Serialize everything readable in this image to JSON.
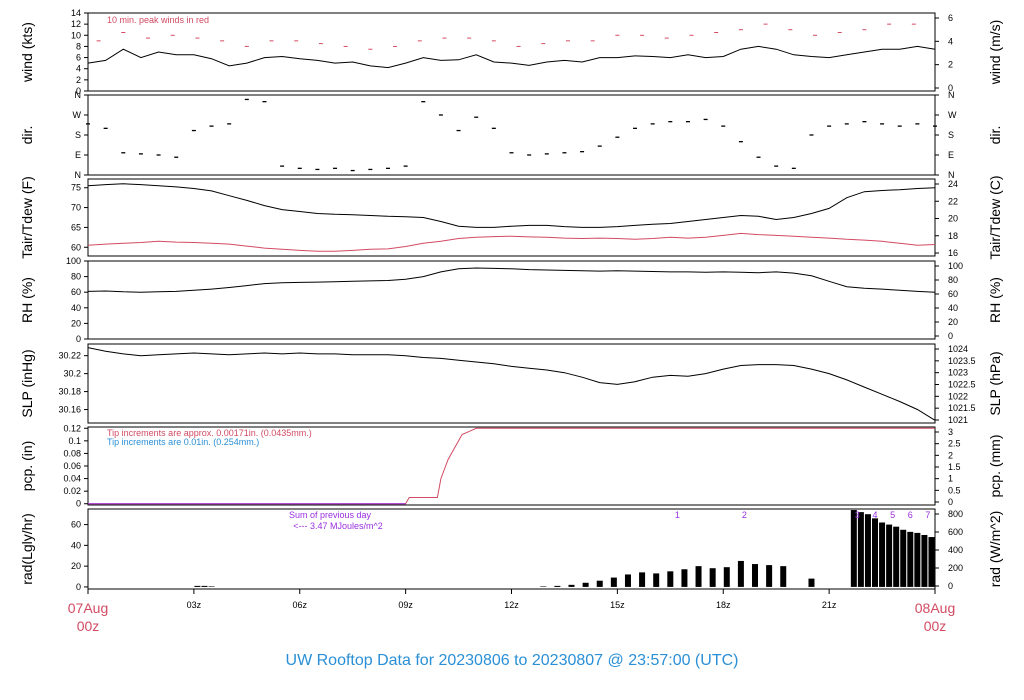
{
  "title": "UW Rooftop Data for 20230806  to  20230807 @ 23:57:00  (UTC)",
  "colors": {
    "title": "#2a8fd6",
    "date": "#d24b63",
    "red": "#d24b63",
    "blue": "#2a8fd6",
    "purple": "#9a2fe0",
    "line": "#000000"
  },
  "x_ticks": {
    "hours": [
      0,
      3,
      6,
      9,
      12,
      15,
      18,
      21,
      24
    ],
    "labels": [
      "07Aug",
      "03z",
      "06z",
      "09z",
      "12z",
      "15z",
      "18z",
      "21z",
      "08Aug"
    ],
    "start_sub": "00z",
    "end_sub": "00z"
  },
  "chart_data": [
    {
      "id": "wind",
      "type": "line",
      "ylabel": "wind (kts)",
      "ylabel_right": "wind (m/s)",
      "ylim": [
        0,
        14
      ],
      "yticks": [
        0,
        2,
        4,
        6,
        8,
        10,
        12,
        14
      ],
      "right_ylim_units": [
        0,
        7.2
      ],
      "right_ticks": [
        0,
        2,
        4,
        6
      ],
      "note": "10 min. peak winds in red",
      "series": [
        {
          "role": "speed",
          "x": [
            0,
            0.5,
            1,
            1.5,
            2,
            2.5,
            3,
            3.5,
            4,
            4.5,
            5,
            5.5,
            6,
            6.5,
            7,
            7.5,
            8,
            8.5,
            9,
            9.5,
            10,
            10.5,
            11,
            11.5,
            12,
            12.5,
            13,
            13.5,
            14,
            14.5,
            15,
            15.5,
            16,
            16.5,
            17,
            17.5,
            18,
            18.5,
            19,
            19.5,
            20,
            20.5,
            21,
            21.5,
            22,
            22.5,
            23,
            23.5,
            24
          ],
          "y": [
            5,
            5.5,
            7.5,
            6,
            7,
            6.5,
            6.5,
            5.8,
            4.5,
            5,
            6,
            6.2,
            5.8,
            5.5,
            5,
            5.2,
            4.5,
            4.2,
            5,
            6,
            5.5,
            5.6,
            6.5,
            5.2,
            5,
            4.6,
            5.2,
            5.5,
            5.2,
            6,
            6,
            6.3,
            6.2,
            6,
            6.5,
            6,
            6.2,
            7.5,
            8,
            7.5,
            6.5,
            6.2,
            6,
            6.5,
            7,
            7.5,
            7.5,
            8,
            7.5
          ]
        },
        {
          "role": "peak",
          "x": [
            0.3,
            1,
            1.7,
            2.4,
            3.1,
            3.8,
            4.5,
            5.2,
            5.9,
            6.6,
            7.3,
            8,
            8.7,
            9.4,
            10.1,
            10.8,
            11.5,
            12.2,
            12.9,
            13.6,
            14.3,
            15,
            15.7,
            16.4,
            17.1,
            17.8,
            18.5,
            19.2,
            19.9,
            20.6,
            21.3,
            22,
            22.7,
            23.4
          ],
          "y": [
            9,
            10.5,
            9.5,
            10,
            9.5,
            9,
            8,
            9,
            9,
            8.5,
            8,
            7.5,
            8,
            9,
            9.5,
            9.5,
            9,
            8,
            8.5,
            9,
            9,
            10,
            10,
            9.5,
            10,
            10.5,
            11,
            12,
            11,
            10,
            10.5,
            11,
            12,
            12
          ]
        }
      ]
    },
    {
      "id": "dir",
      "type": "scatter",
      "ylabel": "dir.",
      "ylabel_right": "dir.",
      "ylim": [
        0,
        360
      ],
      "yticks": [
        0,
        90,
        180,
        270,
        360
      ],
      "ytick_labels": [
        "N",
        "E",
        "S",
        "W",
        "N"
      ],
      "series": [
        {
          "role": "direction",
          "x": [
            0,
            0.5,
            1,
            1.5,
            2,
            2.5,
            3,
            3.5,
            4,
            4.5,
            5,
            5.5,
            6,
            6.5,
            7,
            7.5,
            8,
            8.5,
            9,
            9.5,
            10,
            10.5,
            11,
            11.5,
            12,
            12.5,
            13,
            13.5,
            14,
            14.5,
            15,
            15.5,
            16,
            16.5,
            17,
            17.5,
            18,
            18.5,
            19,
            19.5,
            20,
            20.5,
            21,
            21.5,
            22,
            22.5,
            23,
            23.5,
            24
          ],
          "y": [
            230,
            210,
            100,
            95,
            90,
            80,
            200,
            220,
            230,
            340,
            330,
            40,
            30,
            25,
            30,
            20,
            25,
            30,
            40,
            330,
            270,
            200,
            260,
            210,
            100,
            90,
            95,
            100,
            105,
            130,
            170,
            210,
            230,
            240,
            240,
            250,
            220,
            150,
            80,
            40,
            30,
            180,
            220,
            230,
            240,
            230,
            220,
            230,
            220
          ]
        }
      ]
    },
    {
      "id": "temp",
      "type": "line",
      "ylabel": "Tair/Tdew (F)",
      "ylabel_right": "Tair/Tdew (C)",
      "ylim": [
        57.8,
        77.2
      ],
      "yticks": [
        60,
        65,
        70,
        75
      ],
      "right_ticks": [
        16,
        18,
        20,
        22,
        24
      ],
      "series": [
        {
          "role": "air",
          "x": [
            0,
            0.5,
            1,
            1.5,
            2,
            2.5,
            3,
            3.5,
            4,
            4.5,
            5,
            5.5,
            6,
            6.5,
            7,
            7.5,
            8,
            8.5,
            9,
            9.5,
            10,
            10.5,
            11,
            11.5,
            12,
            12.5,
            13,
            13.5,
            14,
            14.5,
            15,
            15.5,
            16,
            16.5,
            17,
            17.5,
            18,
            18.5,
            19,
            19.5,
            20,
            20.5,
            21,
            21.5,
            22,
            22.5,
            23,
            23.5,
            24
          ],
          "y": [
            75.5,
            75.8,
            76,
            75.8,
            75.5,
            75.2,
            74.8,
            74.2,
            73,
            71.8,
            70.5,
            69.5,
            69,
            68.5,
            68.3,
            68.2,
            68,
            67.8,
            67.7,
            67.5,
            66.5,
            65.3,
            65,
            65,
            65.3,
            65.5,
            65.5,
            65.2,
            65,
            65,
            65.2,
            65.5,
            65.8,
            66,
            66.5,
            67,
            67.5,
            68,
            67.8,
            67,
            67.5,
            68.5,
            69.8,
            72.5,
            74,
            74.3,
            74.5,
            74.8,
            75
          ]
        },
        {
          "role": "dew",
          "x": [
            0,
            0.5,
            1,
            1.5,
            2,
            2.5,
            3,
            3.5,
            4,
            4.5,
            5,
            5.5,
            6,
            6.5,
            7,
            7.5,
            8,
            8.5,
            9,
            9.5,
            10,
            10.5,
            11,
            11.5,
            12,
            12.5,
            13,
            13.5,
            14,
            14.5,
            15,
            15.5,
            16,
            16.5,
            17,
            17.5,
            18,
            18.5,
            19,
            19.5,
            20,
            20.5,
            21,
            21.5,
            22,
            22.5,
            23,
            23.5,
            24
          ],
          "y": [
            60.5,
            60.8,
            61,
            61.2,
            61.5,
            61.3,
            61.2,
            61,
            60.8,
            60.3,
            59.8,
            59.5,
            59.2,
            59,
            59,
            59.2,
            59.5,
            59.6,
            60.2,
            61,
            61.5,
            62.2,
            62.5,
            62.7,
            62.8,
            62.6,
            62.5,
            62.3,
            62.2,
            62.3,
            62.2,
            62,
            62.2,
            62.5,
            62.3,
            62.5,
            63,
            63.5,
            63.2,
            63,
            62.8,
            62.5,
            62.3,
            62,
            61.8,
            61.5,
            61,
            60.5,
            60.7
          ]
        }
      ]
    },
    {
      "id": "rh",
      "type": "line",
      "ylabel": "RH (%)",
      "ylabel_right": "RH (%)",
      "ylim": [
        0,
        100
      ],
      "yticks": [
        0,
        20,
        40,
        60,
        80,
        100
      ],
      "right_ticks": [
        0,
        20,
        40,
        60,
        80,
        100
      ],
      "series": [
        {
          "role": "rh",
          "x": [
            0,
            0.5,
            1,
            1.5,
            2,
            2.5,
            3,
            3.5,
            4,
            4.5,
            5,
            5.5,
            6,
            6.5,
            7,
            7.5,
            8,
            8.5,
            9,
            9.5,
            10,
            10.5,
            11,
            11.5,
            12,
            12.5,
            13,
            13.5,
            14,
            14.5,
            15,
            15.5,
            16,
            16.5,
            17,
            17.5,
            18,
            18.5,
            19,
            19.5,
            20,
            20.5,
            21,
            21.5,
            22,
            22.5,
            23,
            23.5,
            24
          ],
          "y": [
            61,
            61.5,
            60.5,
            60,
            60.5,
            61,
            62.5,
            64,
            66,
            68.5,
            71,
            72,
            72.5,
            73,
            73.5,
            74,
            74.5,
            75,
            76.5,
            80,
            86,
            90,
            91,
            90.5,
            90,
            89,
            88.5,
            88,
            87.5,
            87,
            87.5,
            87,
            86.5,
            86,
            86,
            85.5,
            86,
            85.5,
            85,
            86,
            84.5,
            81,
            74,
            67,
            65,
            64,
            62.5,
            61,
            60
          ]
        }
      ]
    },
    {
      "id": "slp",
      "type": "line",
      "ylabel": "SLP (inHg)",
      "ylabel_right": "SLP (hPa)",
      "ylim": [
        30.145,
        30.233
      ],
      "yticks": [
        30.16,
        30.18,
        30.2,
        30.22
      ],
      "right_ticks": [
        1021,
        1021.5,
        1022,
        1022.5,
        1023,
        1023.5,
        1024
      ],
      "series": [
        {
          "role": "slp",
          "x": [
            0,
            0.5,
            1,
            1.5,
            2,
            2.5,
            3,
            3.5,
            4,
            4.5,
            5,
            5.5,
            6,
            6.5,
            7,
            7.5,
            8,
            8.5,
            9,
            9.5,
            10,
            10.5,
            11,
            11.5,
            12,
            12.5,
            13,
            13.5,
            14,
            14.5,
            15,
            15.5,
            16,
            16.5,
            17,
            17.5,
            18,
            18.5,
            19,
            19.5,
            20,
            20.5,
            21,
            21.5,
            22,
            22.5,
            23,
            23.5,
            24
          ],
          "y": [
            30.229,
            30.225,
            30.222,
            30.22,
            30.221,
            30.222,
            30.223,
            30.222,
            30.221,
            30.222,
            30.223,
            30.222,
            30.223,
            30.222,
            30.222,
            30.221,
            30.221,
            30.221,
            30.22,
            30.218,
            30.217,
            30.215,
            30.213,
            30.211,
            30.208,
            30.206,
            30.204,
            30.201,
            30.196,
            30.19,
            30.188,
            30.191,
            30.196,
            30.198,
            30.197,
            30.2,
            30.205,
            30.209,
            30.21,
            30.21,
            30.209,
            30.205,
            30.2,
            30.193,
            30.185,
            30.177,
            30.169,
            30.16,
            30.148
          ]
        }
      ]
    },
    {
      "id": "pcp",
      "type": "line",
      "ylabel": "pcp. (in)",
      "ylabel_right": "pcp. (mm)",
      "ylim": [
        -0.002,
        0.122
      ],
      "yticks": [
        0,
        0.02,
        0.04,
        0.06,
        0.08,
        0.1,
        0.12
      ],
      "right_ticks": [
        0,
        0.5,
        1,
        1.5,
        2,
        2.5,
        3
      ],
      "notes": [
        "Tip increments are approx. 0.00171in. (0.0435mm.)",
        "Tip increments are 0.01in. (0.254mm.)"
      ],
      "series": [
        {
          "role": "total",
          "x": [
            0,
            9,
            9.1,
            9.9,
            10,
            10.2,
            10.4,
            10.6,
            10.8,
            11,
            11.5,
            24
          ],
          "y": [
            0,
            0,
            0.01,
            0.01,
            0.04,
            0.07,
            0.09,
            0.11,
            0.115,
            0.12,
            0.12,
            0.12
          ]
        }
      ]
    },
    {
      "id": "rad",
      "type": "bar",
      "ylabel": "rad(Lgly/hr)",
      "ylabel_right": "rad (W/m^2)",
      "ylim": [
        -2,
        75
      ],
      "yticks": [
        0,
        20,
        40,
        60
      ],
      "right_ticks": [
        0,
        200,
        400,
        600,
        800
      ],
      "note_title": "Sum of previous day",
      "note_value": "<--- 3.47 MJoules/m^2",
      "markers": [
        "1",
        "2",
        "3",
        "4",
        "5",
        "6",
        "7"
      ],
      "marker_hours": [
        16.7,
        18.6,
        21.8,
        22.3,
        22.8,
        23.3,
        23.8
      ],
      "series": [
        {
          "role": "radiation",
          "x": [
            3.1,
            3.3,
            3.5,
            12.9,
            13.3,
            13.7,
            14.1,
            14.5,
            14.9,
            15.3,
            15.7,
            16.1,
            16.5,
            16.9,
            17.3,
            17.7,
            18.1,
            18.5,
            18.9,
            19.3,
            19.7,
            20.5,
            21.7,
            21.9,
            22.1,
            22.3,
            22.5,
            22.7,
            22.9,
            23.1,
            23.3,
            23.5,
            23.7,
            23.9
          ],
          "y": [
            1,
            1,
            0.5,
            0.5,
            1,
            2,
            4,
            6,
            9,
            12,
            14,
            13,
            15,
            17,
            20,
            18,
            19,
            25,
            22,
            21,
            20,
            8,
            74,
            72,
            70,
            66,
            62,
            60,
            58,
            55,
            53,
            52,
            50,
            48
          ]
        }
      ]
    }
  ]
}
